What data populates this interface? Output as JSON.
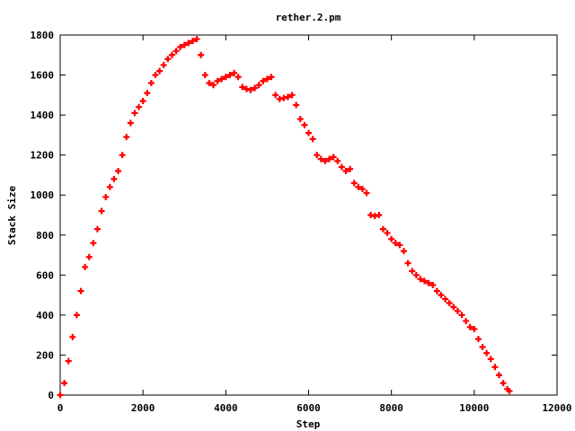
{
  "chart_data": {
    "type": "scatter",
    "title": "rether.2.pm",
    "xlabel": "Step",
    "ylabel": "Stack Size",
    "xlim": [
      0,
      12000
    ],
    "ylim": [
      0,
      1800
    ],
    "x_ticks": [
      "0",
      "2000",
      "4000",
      "6000",
      "8000",
      "10000",
      "12000"
    ],
    "y_ticks": [
      "0",
      "200",
      "400",
      "600",
      "800",
      "1000",
      "1200",
      "1400",
      "1600",
      "1800"
    ],
    "grid": false,
    "marker": "+",
    "series": [
      {
        "color": "#ff0000",
        "points": [
          [
            0,
            0
          ],
          [
            100,
            60
          ],
          [
            200,
            170
          ],
          [
            300,
            290
          ],
          [
            400,
            400
          ],
          [
            500,
            520
          ],
          [
            600,
            640
          ],
          [
            700,
            690
          ],
          [
            800,
            760
          ],
          [
            900,
            830
          ],
          [
            1000,
            920
          ],
          [
            1100,
            990
          ],
          [
            1200,
            1040
          ],
          [
            1300,
            1080
          ],
          [
            1400,
            1120
          ],
          [
            1500,
            1200
          ],
          [
            1600,
            1290
          ],
          [
            1700,
            1360
          ],
          [
            1800,
            1410
          ],
          [
            1900,
            1440
          ],
          [
            2000,
            1470
          ],
          [
            2100,
            1510
          ],
          [
            2200,
            1560
          ],
          [
            2300,
            1600
          ],
          [
            2400,
            1620
          ],
          [
            2500,
            1650
          ],
          [
            2600,
            1680
          ],
          [
            2700,
            1700
          ],
          [
            2800,
            1720
          ],
          [
            2900,
            1740
          ],
          [
            3000,
            1750
          ],
          [
            3100,
            1760
          ],
          [
            3200,
            1770
          ],
          [
            3300,
            1780
          ],
          [
            3400,
            1700
          ],
          [
            3500,
            1600
          ],
          [
            3600,
            1560
          ],
          [
            3700,
            1550
          ],
          [
            3800,
            1570
          ],
          [
            3900,
            1580
          ],
          [
            4000,
            1590
          ],
          [
            4100,
            1600
          ],
          [
            4200,
            1610
          ],
          [
            4300,
            1590
          ],
          [
            4400,
            1540
          ],
          [
            4500,
            1530
          ],
          [
            4600,
            1525
          ],
          [
            4700,
            1535
          ],
          [
            4800,
            1550
          ],
          [
            4900,
            1570
          ],
          [
            5000,
            1580
          ],
          [
            5100,
            1590
          ],
          [
            5200,
            1500
          ],
          [
            5300,
            1480
          ],
          [
            5400,
            1485
          ],
          [
            5500,
            1490
          ],
          [
            5600,
            1500
          ],
          [
            5700,
            1450
          ],
          [
            5800,
            1380
          ],
          [
            5900,
            1350
          ],
          [
            6000,
            1310
          ],
          [
            6100,
            1280
          ],
          [
            6200,
            1200
          ],
          [
            6300,
            1180
          ],
          [
            6400,
            1170
          ],
          [
            6500,
            1180
          ],
          [
            6600,
            1190
          ],
          [
            6700,
            1170
          ],
          [
            6800,
            1140
          ],
          [
            6900,
            1120
          ],
          [
            7000,
            1130
          ],
          [
            7100,
            1060
          ],
          [
            7200,
            1040
          ],
          [
            7300,
            1030
          ],
          [
            7400,
            1010
          ],
          [
            7500,
            900
          ],
          [
            7600,
            895
          ],
          [
            7700,
            900
          ],
          [
            7800,
            830
          ],
          [
            7900,
            810
          ],
          [
            8000,
            780
          ],
          [
            8100,
            760
          ],
          [
            8200,
            750
          ],
          [
            8300,
            720
          ],
          [
            8400,
            660
          ],
          [
            8500,
            620
          ],
          [
            8600,
            600
          ],
          [
            8700,
            580
          ],
          [
            8800,
            570
          ],
          [
            8900,
            560
          ],
          [
            9000,
            550
          ],
          [
            9100,
            520
          ],
          [
            9200,
            500
          ],
          [
            9300,
            480
          ],
          [
            9400,
            460
          ],
          [
            9500,
            440
          ],
          [
            9600,
            420
          ],
          [
            9700,
            400
          ],
          [
            9800,
            370
          ],
          [
            9900,
            340
          ],
          [
            10000,
            330
          ],
          [
            10100,
            280
          ],
          [
            10200,
            240
          ],
          [
            10300,
            210
          ],
          [
            10400,
            180
          ],
          [
            10500,
            140
          ],
          [
            10600,
            100
          ],
          [
            10700,
            60
          ],
          [
            10800,
            30
          ],
          [
            10850,
            20
          ]
        ]
      }
    ]
  }
}
